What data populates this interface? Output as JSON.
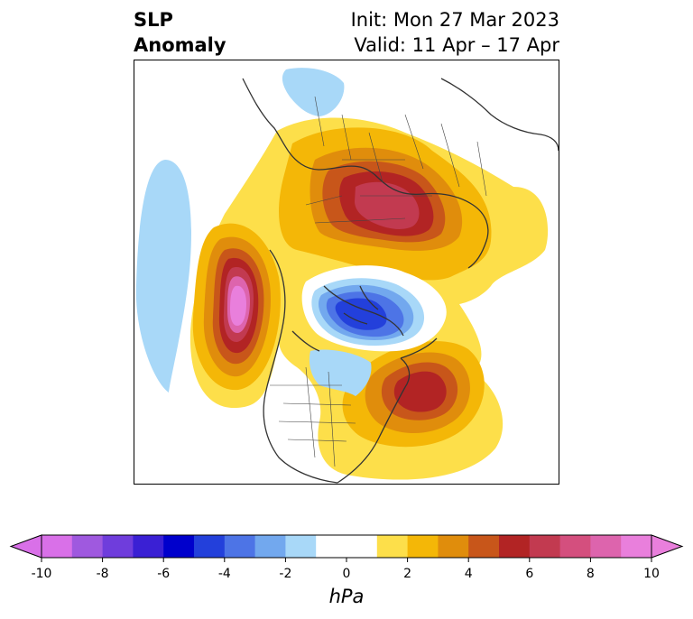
{
  "title": {
    "left_line1": "SLP",
    "left_line2": "Anomaly",
    "init": "Init: Mon 27 Mar 2023",
    "valid": "Valid: 11 Apr – 17 Apr"
  },
  "colorbar": {
    "units": "hPa",
    "ticks": [
      "-10",
      "-8",
      "-6",
      "-4",
      "-2",
      "0",
      "2",
      "4",
      "6",
      "8",
      "10"
    ],
    "min": -10,
    "max": 10,
    "extend": "both",
    "colors": [
      "#d970e8",
      "#9f59df",
      "#6f3ddc",
      "#3a20d4",
      "#0000cc",
      "#2340db",
      "#4d74e6",
      "#72a8ee",
      "#a8d8f8",
      "#ffffff",
      "#ffffff",
      "#fddf4a",
      "#f4b707",
      "#e08d0c",
      "#c8561a",
      "#b22424",
      "#c23a50",
      "#d44f7e",
      "#dd64ad",
      "#e97fdc"
    ]
  },
  "map": {
    "projection": "polar-stereographic",
    "anomaly_centers": [
      {
        "region": "Northern Europe / Scandinavia",
        "sign": "positive",
        "approx_hpa": 7
      },
      {
        "region": "Gulf of Alaska / NE Pacific",
        "sign": "positive",
        "approx_hpa": 9
      },
      {
        "region": "Eastern North America / NW Atlantic",
        "sign": "positive",
        "approx_hpa": 6
      },
      {
        "region": "Central Arctic / Canadian Archipelago",
        "sign": "negative",
        "approx_hpa": -4
      },
      {
        "region": "Central Pacific",
        "sign": "negative",
        "approx_hpa": -1
      },
      {
        "region": "Hudson Bay / Central Canada",
        "sign": "negative",
        "approx_hpa": -1
      }
    ]
  }
}
